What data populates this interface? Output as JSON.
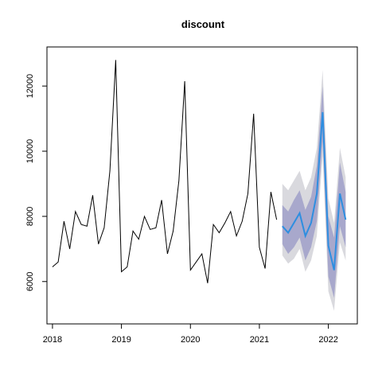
{
  "chart_data": {
    "type": "line",
    "title": "discount",
    "xlabel": "",
    "ylabel": "",
    "xlim": [
      2017.92,
      2022.42
    ],
    "ylim": [
      4700,
      13200
    ],
    "xticks": [
      2018,
      2019,
      2020,
      2021,
      2022
    ],
    "xtick_labels": [
      "2018",
      "2019",
      "2020",
      "2021",
      "2022"
    ],
    "yticks": [
      6000,
      8000,
      10000,
      12000
    ],
    "ytick_labels": [
      "6000",
      "8000",
      "10000",
      "12000"
    ],
    "grid": false,
    "legend": "none",
    "series": [
      {
        "role": "observed",
        "color": "#000000",
        "x": [
          2018.0,
          2018.083,
          2018.167,
          2018.25,
          2018.333,
          2018.417,
          2018.5,
          2018.583,
          2018.667,
          2018.75,
          2018.833,
          2018.917,
          2019.0,
          2019.083,
          2019.167,
          2019.25,
          2019.333,
          2019.417,
          2019.5,
          2019.583,
          2019.667,
          2019.75,
          2019.833,
          2019.917,
          2020.0,
          2020.083,
          2020.167,
          2020.25,
          2020.333,
          2020.417,
          2020.5,
          2020.583,
          2020.667,
          2020.75,
          2020.833,
          2020.917,
          2021.0,
          2021.083,
          2021.167,
          2021.25
        ],
        "y": [
          6450,
          6600,
          7850,
          7000,
          8150,
          7750,
          7700,
          8650,
          7150,
          7650,
          9400,
          12800,
          6300,
          6450,
          7550,
          7300,
          8000,
          7600,
          7650,
          8500,
          6850,
          7550,
          9100,
          12150,
          6350,
          6600,
          6850,
          5950,
          7750,
          7500,
          7800,
          8150,
          7400,
          7850,
          8700,
          11150,
          7050,
          6400,
          8750,
          7900
        ]
      },
      {
        "role": "forecast",
        "color": "#2e8ee0",
        "x": [
          2021.333,
          2021.417,
          2021.5,
          2021.583,
          2021.667,
          2021.75,
          2021.833,
          2021.917,
          2022.0,
          2022.083,
          2022.167,
          2022.25
        ],
        "y": [
          7700,
          7500,
          7800,
          8100,
          7400,
          7800,
          8700,
          11200,
          7100,
          6350,
          8700,
          7900
        ],
        "lower_80": [
          7150,
          6850,
          7050,
          7350,
          6650,
          7050,
          7850,
          10300,
          6150,
          5500,
          7700,
          7050
        ],
        "upper_80": [
          8350,
          8150,
          8500,
          8800,
          8200,
          8600,
          9550,
          12000,
          8000,
          7350,
          9650,
          8750
        ],
        "lower_95": [
          6800,
          6550,
          6700,
          7000,
          6300,
          6650,
          7400,
          9850,
          5700,
          5100,
          7200,
          6650
        ],
        "upper_95": [
          9000,
          8800,
          9100,
          9400,
          8800,
          9200,
          10100,
          12500,
          8550,
          7800,
          10100,
          9200
        ],
        "band_80_color": "#a8a8cc",
        "band_95_color": "#d9d9de"
      }
    ]
  }
}
